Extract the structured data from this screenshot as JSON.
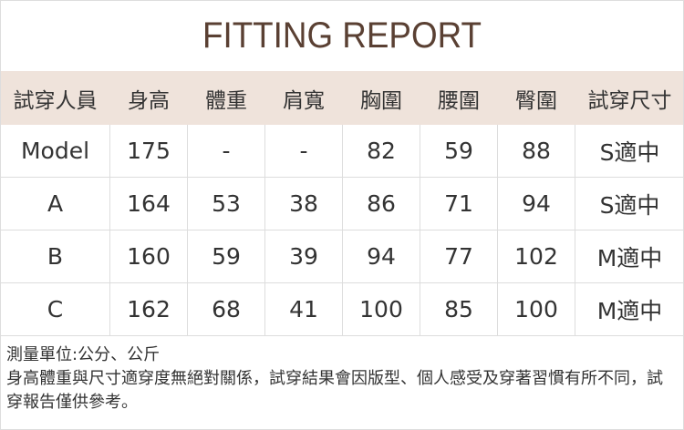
{
  "title": "FITTING REPORT",
  "headers": [
    "試穿人員",
    "身高",
    "體重",
    "肩寬",
    "胸圍",
    "腰圍",
    "臀圍",
    "試穿尺寸"
  ],
  "rows": [
    [
      "Model",
      "175",
      "-",
      "-",
      "82",
      "59",
      "88",
      "S適中"
    ],
    [
      "A",
      "164",
      "53",
      "38",
      "86",
      "71",
      "94",
      "S適中"
    ],
    [
      "B",
      "160",
      "59",
      "39",
      "94",
      "77",
      "102",
      "M適中"
    ],
    [
      "C",
      "162",
      "68",
      "41",
      "100",
      "85",
      "100",
      "M適中"
    ]
  ],
  "footer": {
    "units": "測量單位:公分、公斤",
    "note": "身高體重與尺寸適穿度無絕對關係，試穿結果會因版型、個人感受及穿著習慣有所不同，試穿報告僅供參考。"
  },
  "colors": {
    "header_bg": "#efe3db",
    "title": "#5a4033"
  }
}
